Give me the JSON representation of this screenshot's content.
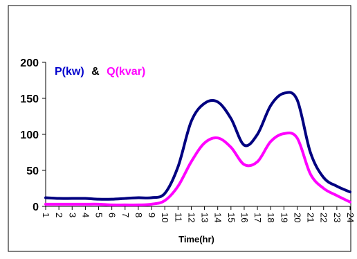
{
  "chart_data": {
    "type": "line",
    "title": "",
    "xlabel": "Time(hr)",
    "ylabel": "",
    "categories": [
      "1",
      "2",
      "3",
      "4",
      "5",
      "6",
      "7",
      "8",
      "9",
      "10",
      "11",
      "12",
      "13",
      "14",
      "15",
      "16",
      "17",
      "18",
      "19",
      "20",
      "21",
      "22",
      "23",
      "24"
    ],
    "ylim": [
      0,
      200
    ],
    "yticks": [
      0,
      50,
      100,
      150,
      200
    ],
    "grid": false,
    "legend": {
      "position": "top-left",
      "p_label": "P(kw)",
      "separator": "&",
      "q_label": "Q(kvar)"
    },
    "series": [
      {
        "name": "P(kw)",
        "color": "#000080",
        "values": [
          12,
          11,
          11,
          11,
          10,
          10,
          11,
          12,
          12,
          18,
          55,
          118,
          143,
          145,
          122,
          85,
          100,
          140,
          157,
          148,
          75,
          40,
          28,
          20
        ]
      },
      {
        "name": "Q(kvar)",
        "color": "#ff00ff",
        "values": [
          3,
          3,
          3,
          3,
          3,
          2,
          2,
          2,
          3,
          8,
          28,
          62,
          88,
          95,
          82,
          58,
          62,
          90,
          101,
          95,
          45,
          25,
          15,
          6
        ]
      }
    ]
  }
}
